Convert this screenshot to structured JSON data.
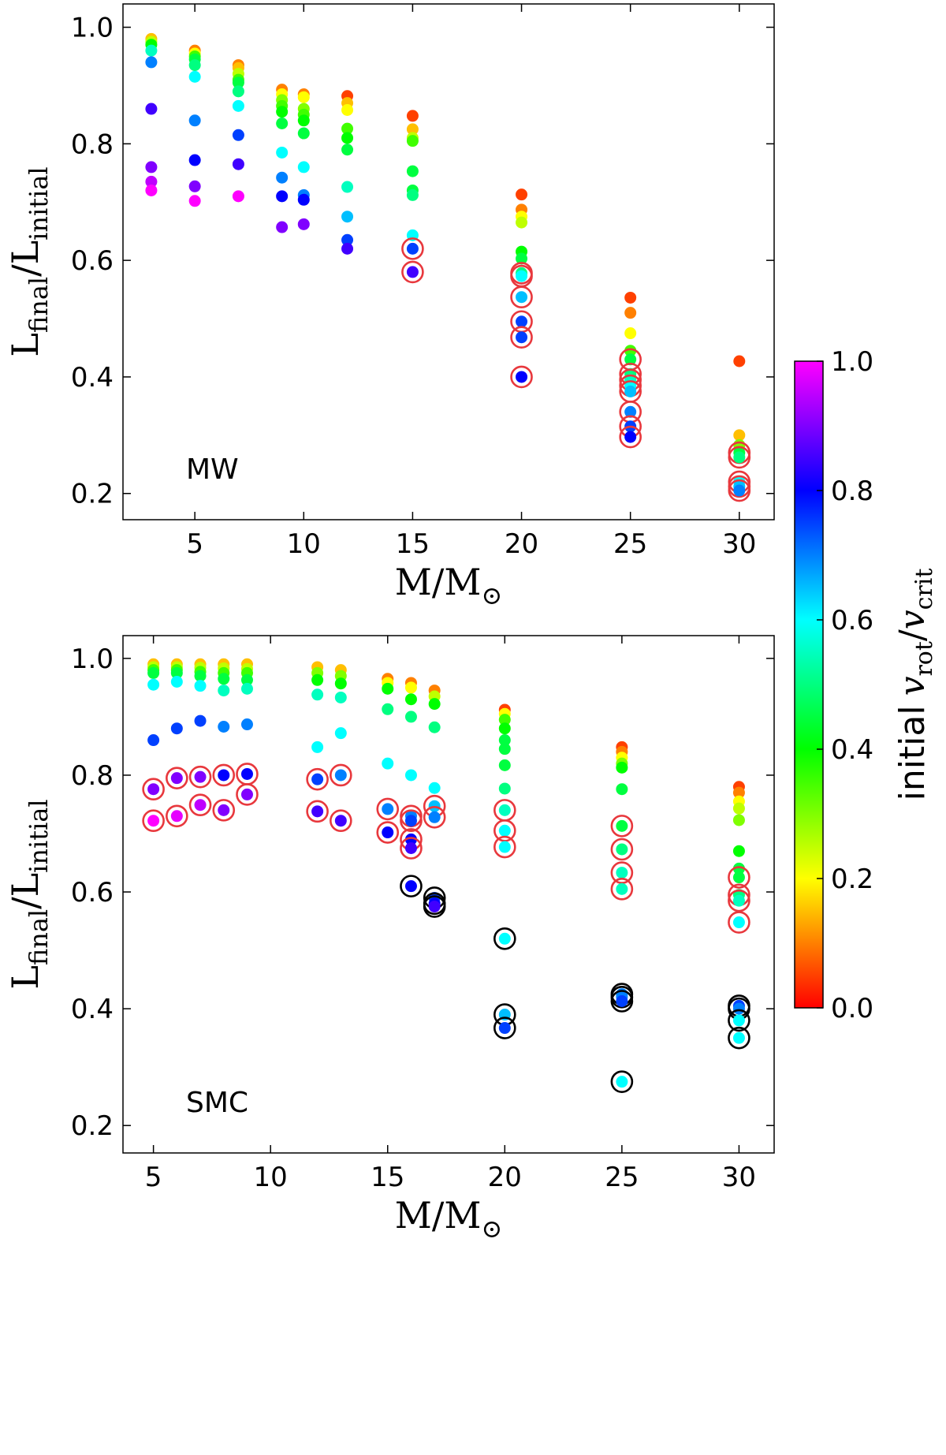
{
  "chart_data": [
    {
      "type": "scatter",
      "annotation": "MW",
      "xlabel": [
        "M/M",
        "⊙"
      ],
      "ylabel": [
        "L",
        "final",
        "/L",
        "initial"
      ],
      "xlim": [
        1.7,
        31.6
      ],
      "ylim": [
        0.155,
        1.04
      ],
      "xticks": [
        5,
        10,
        15,
        20,
        25,
        30
      ],
      "yticks": [
        0.2,
        0.4,
        0.6,
        0.8,
        {
          "value": 1.0,
          "label": "1.0"
        }
      ],
      "series": [
        {
          "x": 3,
          "values": [
            0.98,
            0.975,
            0.97,
            0.96,
            0.94,
            0.86,
            0.76,
            0.735,
            0.72
          ],
          "colors": [
            0.15,
            0.25,
            0.4,
            0.55,
            0.7,
            0.85,
            0.9,
            0.95,
            1.0
          ],
          "rings": [
            null,
            null,
            null,
            null,
            null,
            null,
            null,
            null,
            null
          ]
        },
        {
          "x": 5,
          "values": [
            0.96,
            0.955,
            0.95,
            0.945,
            0.935,
            0.915,
            0.84,
            0.772,
            0.727,
            0.702
          ],
          "colors": [
            0.1,
            0.2,
            0.35,
            0.45,
            0.5,
            0.6,
            0.7,
            0.8,
            0.9,
            1.0
          ],
          "rings": [
            null,
            null,
            null,
            null,
            null,
            null,
            null,
            null,
            null,
            null
          ]
        },
        {
          "x": 7,
          "values": [
            0.935,
            0.93,
            0.92,
            0.91,
            0.905,
            0.89,
            0.865,
            0.815,
            0.765,
            0.71
          ],
          "colors": [
            0.1,
            0.15,
            0.25,
            0.35,
            0.45,
            0.5,
            0.6,
            0.75,
            0.85,
            1.0
          ],
          "rings": [
            null,
            null,
            null,
            null,
            null,
            null,
            null,
            null,
            null,
            null
          ]
        },
        {
          "x": 9,
          "values": [
            0.893,
            0.885,
            0.875,
            0.865,
            0.855,
            0.835,
            0.785,
            0.742,
            0.71,
            0.657
          ],
          "colors": [
            0.1,
            0.2,
            0.3,
            0.35,
            0.4,
            0.45,
            0.6,
            0.7,
            0.8,
            0.9
          ],
          "rings": [
            null,
            null,
            null,
            null,
            null,
            null,
            null,
            null,
            null,
            null
          ]
        },
        {
          "x": 10,
          "values": [
            0.885,
            0.88,
            0.86,
            0.85,
            0.84,
            0.818,
            0.76,
            0.712,
            0.704,
            0.662
          ],
          "colors": [
            0.1,
            0.2,
            0.3,
            0.35,
            0.4,
            0.45,
            0.6,
            0.7,
            0.8,
            0.9
          ],
          "rings": [
            null,
            null,
            null,
            null,
            null,
            null,
            null,
            null,
            null,
            null
          ]
        },
        {
          "x": 12,
          "values": [
            0.882,
            0.87,
            0.858,
            0.826,
            0.81,
            0.79,
            0.726,
            0.675,
            0.635,
            0.62
          ],
          "colors": [
            0.05,
            0.15,
            0.2,
            0.35,
            0.4,
            0.45,
            0.55,
            0.65,
            0.75,
            0.85
          ],
          "rings": [
            null,
            null,
            null,
            null,
            null,
            null,
            null,
            null,
            null,
            null
          ]
        },
        {
          "x": 15,
          "values": [
            0.848,
            0.825,
            0.81,
            0.805,
            0.753,
            0.72,
            0.712,
            0.643,
            0.62,
            0.58
          ],
          "colors": [
            0.05,
            0.15,
            0.25,
            0.35,
            0.45,
            0.45,
            0.5,
            0.6,
            0.75,
            0.85
          ],
          "rings": [
            null,
            null,
            null,
            null,
            null,
            null,
            null,
            null,
            "#e8383d",
            "#e8383d"
          ]
        },
        {
          "x": 20,
          "values": [
            0.713,
            0.687,
            0.675,
            0.665,
            0.615,
            0.603,
            0.578,
            0.573,
            0.537,
            0.495,
            0.468,
            0.4
          ],
          "colors": [
            0.05,
            0.1,
            0.2,
            0.25,
            0.4,
            0.45,
            0.5,
            0.6,
            0.65,
            0.75,
            0.75,
            0.8
          ],
          "rings": [
            null,
            null,
            null,
            null,
            null,
            null,
            "#e8383d",
            "#e8383d",
            "#e8383d",
            "#e8383d",
            "#e8383d",
            "#e8383d"
          ]
        },
        {
          "x": 25,
          "values": [
            0.536,
            0.51,
            0.475,
            0.445,
            0.43,
            0.405,
            0.395,
            0.385,
            0.375,
            0.34,
            0.315,
            0.297
          ],
          "colors": [
            0.05,
            0.1,
            0.2,
            0.35,
            0.45,
            0.5,
            0.55,
            0.6,
            0.65,
            0.7,
            0.75,
            0.8
          ],
          "rings": [
            null,
            null,
            null,
            null,
            "#e8383d",
            "#e8383d",
            "#e8383d",
            "#e8383d",
            "#e8383d",
            "#e8383d",
            "#e8383d",
            "#e8383d"
          ]
        },
        {
          "x": 30,
          "values": [
            0.427,
            0.3,
            0.283,
            0.27,
            0.262,
            0.22,
            0.212,
            0.205
          ],
          "colors": [
            0.05,
            0.15,
            0.3,
            0.45,
            0.5,
            0.6,
            0.65,
            0.7
          ],
          "rings": [
            null,
            null,
            null,
            "#e8383d",
            "#e8383d",
            "#e8383d",
            "#e8383d",
            "#e8383d"
          ]
        }
      ]
    },
    {
      "type": "scatter",
      "annotation": "SMC",
      "xlabel": [
        "M/M",
        "⊙"
      ],
      "ylabel": [
        "L",
        "final",
        "/L",
        "initial"
      ],
      "xlim": [
        3.7,
        31.5
      ],
      "ylim": [
        0.153,
        1.039
      ],
      "xticks": [
        5,
        10,
        15,
        20,
        25,
        30
      ],
      "yticks": [
        0.2,
        0.4,
        0.6,
        0.8,
        {
          "value": 1.0,
          "label": "1.0"
        }
      ],
      "series": [
        {
          "x": 5,
          "values": [
            0.99,
            0.985,
            0.98,
            0.975,
            0.955,
            0.86,
            0.776,
            0.722
          ],
          "colors": [
            0.15,
            0.25,
            0.35,
            0.45,
            0.6,
            0.75,
            0.9,
            1.0
          ],
          "rings": [
            null,
            null,
            null,
            null,
            null,
            null,
            "#e8383d",
            "#e8383d"
          ]
        },
        {
          "x": 6,
          "values": [
            0.99,
            0.985,
            0.98,
            0.975,
            0.96,
            0.88,
            0.795,
            0.73
          ],
          "colors": [
            0.15,
            0.25,
            0.35,
            0.45,
            0.6,
            0.75,
            0.9,
            0.98
          ],
          "rings": [
            null,
            null,
            null,
            null,
            null,
            null,
            "#e8383d",
            "#e8383d"
          ]
        },
        {
          "x": 7,
          "values": [
            0.99,
            0.984,
            0.977,
            0.97,
            0.953,
            0.893,
            0.797,
            0.749
          ],
          "colors": [
            0.15,
            0.25,
            0.35,
            0.45,
            0.6,
            0.75,
            0.9,
            0.95
          ],
          "rings": [
            null,
            null,
            null,
            null,
            null,
            null,
            "#e8383d",
            "#e8383d"
          ]
        },
        {
          "x": 8,
          "values": [
            0.99,
            0.983,
            0.975,
            0.965,
            0.945,
            0.883,
            0.8,
            0.74
          ],
          "colors": [
            0.15,
            0.25,
            0.35,
            0.45,
            0.55,
            0.7,
            0.8,
            0.9
          ],
          "rings": [
            null,
            null,
            null,
            null,
            null,
            null,
            "#e8383d",
            "#e8383d"
          ]
        },
        {
          "x": 9,
          "values": [
            0.99,
            0.982,
            0.975,
            0.963,
            0.948,
            0.887,
            0.802,
            0.767
          ],
          "colors": [
            0.15,
            0.25,
            0.35,
            0.45,
            0.55,
            0.7,
            0.8,
            0.9
          ],
          "rings": [
            null,
            null,
            null,
            null,
            null,
            null,
            "#e8383d",
            "#e8383d"
          ]
        },
        {
          "x": 12,
          "values": [
            0.985,
            0.975,
            0.963,
            0.938,
            0.848,
            0.793,
            0.738
          ],
          "colors": [
            0.15,
            0.3,
            0.4,
            0.55,
            0.6,
            0.75,
            0.85
          ],
          "rings": [
            null,
            null,
            null,
            null,
            null,
            "#e8383d",
            "#e8383d"
          ]
        },
        {
          "x": 13,
          "values": [
            0.98,
            0.97,
            0.957,
            0.933,
            0.872,
            0.8,
            0.722
          ],
          "colors": [
            0.15,
            0.3,
            0.4,
            0.55,
            0.6,
            0.7,
            0.85
          ],
          "rings": [
            null,
            null,
            null,
            null,
            null,
            "#e8383d",
            "#e8383d"
          ]
        },
        {
          "x": 15,
          "values": [
            0.965,
            0.958,
            0.948,
            0.913,
            0.82,
            0.742,
            0.702
          ],
          "colors": [
            0.1,
            0.2,
            0.4,
            0.5,
            0.6,
            0.7,
            0.8
          ],
          "rings": [
            null,
            null,
            null,
            null,
            null,
            "#e8383d",
            "#e8383d"
          ]
        },
        {
          "x": 16,
          "values": [
            0.958,
            0.95,
            0.93,
            0.9,
            0.8,
            0.73,
            0.722,
            0.69,
            0.675,
            0.61
          ],
          "colors": [
            0.1,
            0.2,
            0.4,
            0.5,
            0.6,
            0.7,
            0.75,
            0.8,
            0.85,
            0.8
          ],
          "rings": [
            null,
            null,
            null,
            null,
            null,
            "#e8383d",
            "#e8383d",
            "#e8383d",
            "#e8383d",
            "#000000"
          ]
        },
        {
          "x": 17,
          "values": [
            0.945,
            0.935,
            0.922,
            0.882,
            0.778,
            0.747,
            0.728,
            0.59,
            0.58,
            0.575
          ],
          "colors": [
            0.1,
            0.25,
            0.4,
            0.5,
            0.6,
            0.65,
            0.7,
            0.75,
            0.8,
            0.85
          ],
          "rings": [
            null,
            null,
            null,
            null,
            null,
            "#e8383d",
            "#e8383d",
            "#000000",
            "#000000",
            "#000000"
          ]
        },
        {
          "x": 20,
          "values": [
            0.912,
            0.905,
            0.895,
            0.88,
            0.86,
            0.845,
            0.817,
            0.777,
            0.74,
            0.705,
            0.677,
            0.52,
            0.39,
            0.367
          ],
          "colors": [
            0.05,
            0.2,
            0.35,
            0.4,
            0.45,
            0.45,
            0.45,
            0.5,
            0.55,
            0.6,
            0.6,
            0.6,
            0.65,
            0.75
          ],
          "rings": [
            null,
            null,
            null,
            null,
            null,
            null,
            null,
            null,
            "#e8383d",
            "#e8383d",
            "#e8383d",
            "#000000",
            "#000000",
            "#000000"
          ]
        },
        {
          "x": 25,
          "values": [
            0.848,
            0.84,
            0.83,
            0.82,
            0.813,
            0.776,
            0.713,
            0.673,
            0.633,
            0.605,
            0.425,
            0.42,
            0.413,
            0.275
          ],
          "colors": [
            0.05,
            0.1,
            0.2,
            0.3,
            0.4,
            0.45,
            0.45,
            0.5,
            0.55,
            0.55,
            0.7,
            0.7,
            0.75,
            0.6
          ],
          "rings": [
            null,
            null,
            null,
            null,
            null,
            null,
            "#e8383d",
            "#e8383d",
            "#e8383d",
            "#e8383d",
            "#000000",
            "#000000",
            "#000000",
            "#000000"
          ]
        },
        {
          "x": 30,
          "values": [
            0.78,
            0.77,
            0.755,
            0.743,
            0.723,
            0.67,
            0.64,
            0.625,
            0.595,
            0.585,
            0.548,
            0.405,
            0.4,
            0.38,
            0.35
          ],
          "colors": [
            0.05,
            0.1,
            0.2,
            0.25,
            0.3,
            0.4,
            0.45,
            0.45,
            0.5,
            0.55,
            0.6,
            0.75,
            0.7,
            0.6,
            0.6
          ],
          "rings": [
            null,
            null,
            null,
            null,
            null,
            null,
            null,
            "#e8383d",
            "#e8383d",
            "#e8383d",
            "#e8383d",
            "#000000",
            "#000000",
            "#000000",
            "#000000"
          ]
        }
      ]
    }
  ],
  "colorbar": {
    "label": [
      "initial",
      "v",
      "rot",
      "/",
      "v",
      "crit"
    ],
    "lim": [
      0,
      1
    ],
    "ticks": [
      {
        "value": 0,
        "label": "0.0"
      },
      0.2,
      0.4,
      0.6,
      0.8,
      {
        "value": 1,
        "label": "1.0"
      }
    ]
  }
}
